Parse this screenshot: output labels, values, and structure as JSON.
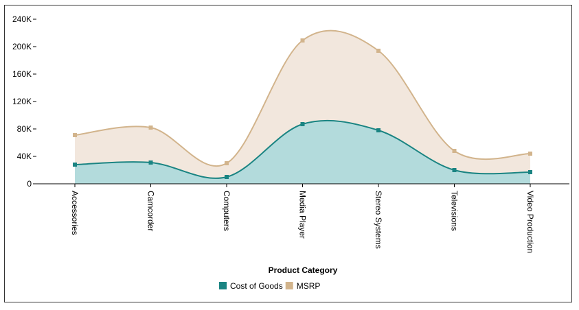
{
  "chart_data": {
    "type": "area",
    "title": "",
    "xlabel": "Product Category",
    "ylabel": "",
    "categories": [
      "Accessories",
      "Camcorder",
      "Computers",
      "Media Player",
      "Stereo Systems",
      "Televisions",
      "Video Production"
    ],
    "series": [
      {
        "name": "Cost of Goods",
        "color": "#1a8482",
        "fill": "#b3dbdc",
        "values": [
          28000,
          31000,
          10000,
          87000,
          78000,
          20000,
          17000
        ]
      },
      {
        "name": "MSRP",
        "color": "#d2b48c",
        "fill": "#f2e7dd",
        "values": [
          71000,
          82000,
          30000,
          209000,
          194000,
          48000,
          44000
        ]
      }
    ],
    "ylim": [
      0,
      240000
    ],
    "yticks": [
      0,
      40000,
      80000,
      120000,
      160000,
      200000,
      240000
    ],
    "ytick_labels": [
      "0",
      "40K",
      "80K",
      "120K",
      "160K",
      "200K",
      "240K"
    ],
    "smooth": true,
    "grid": false,
    "legend": "bottom-center"
  }
}
